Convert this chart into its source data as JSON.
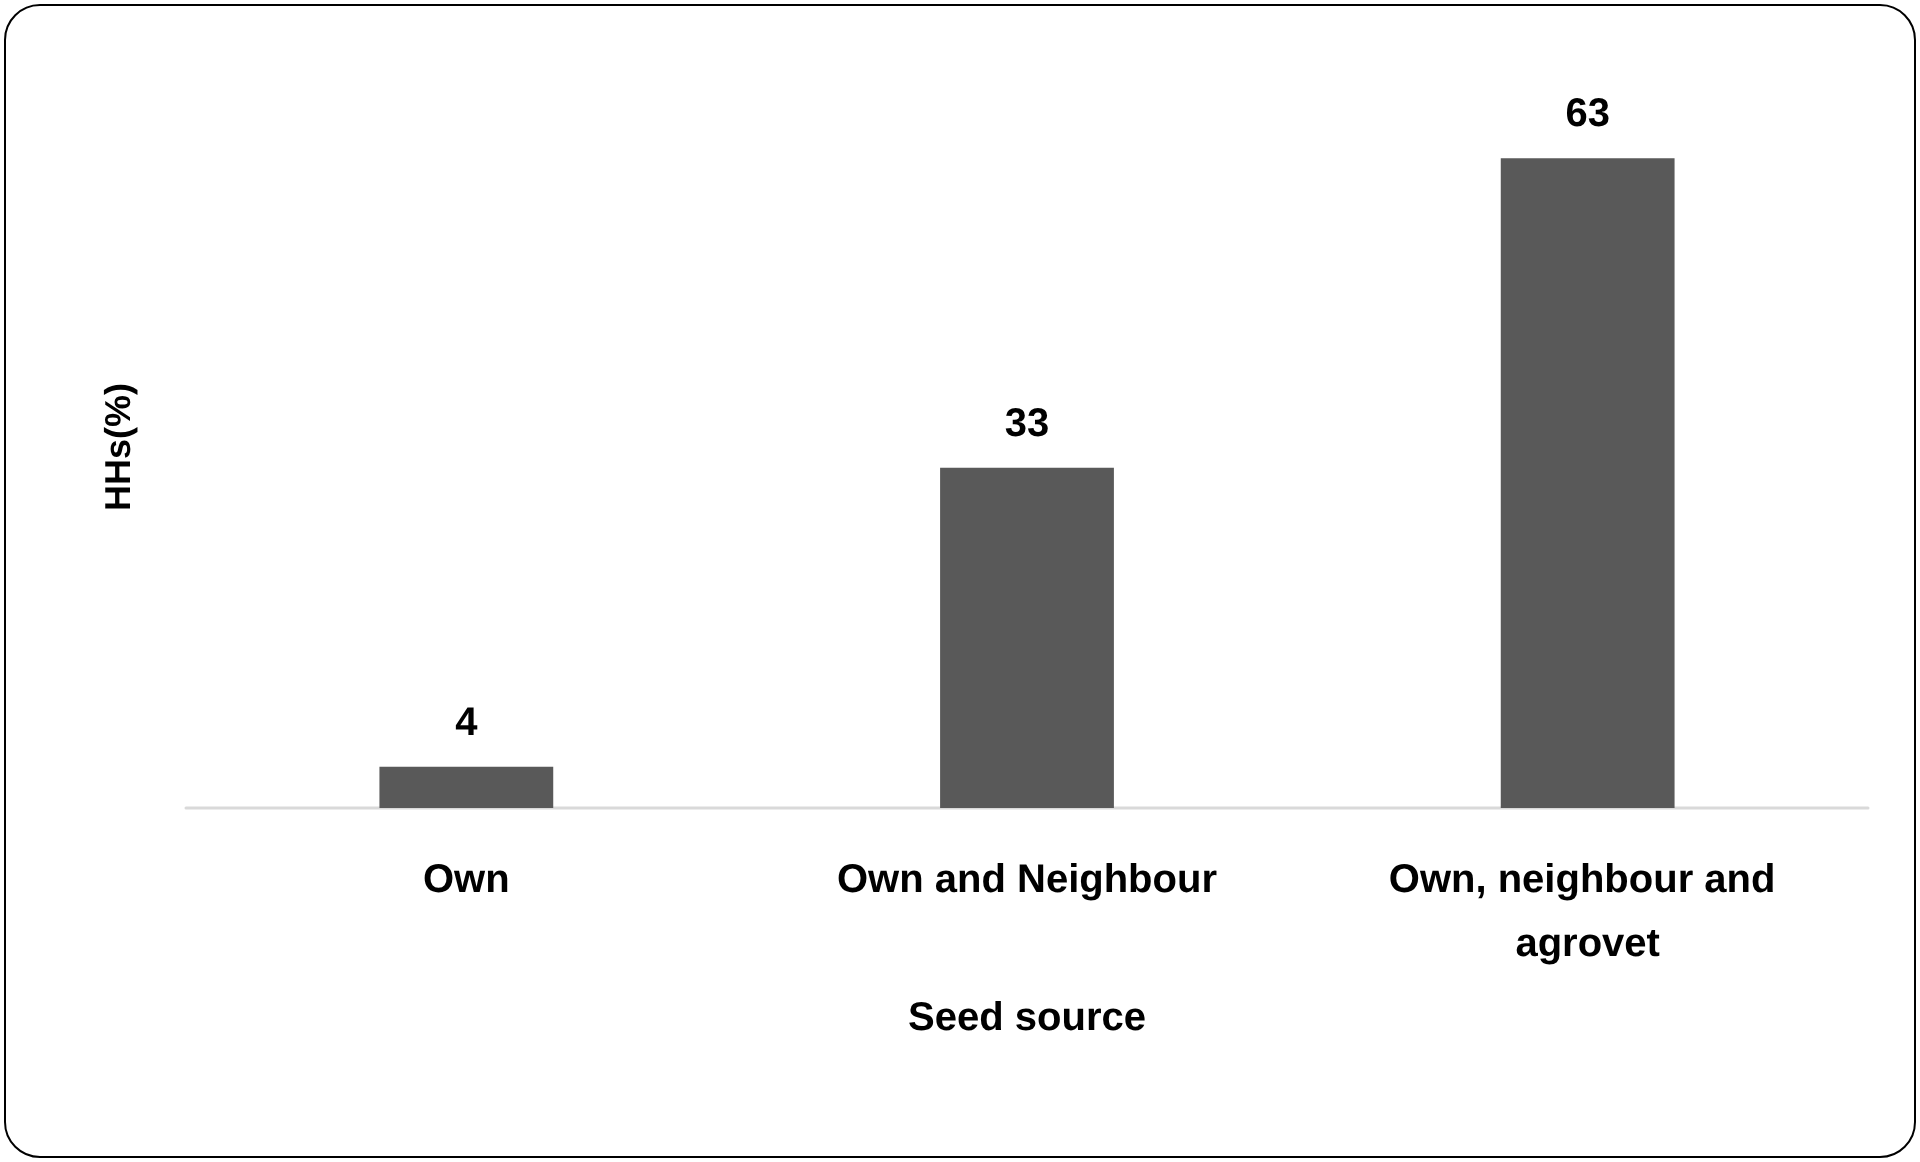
{
  "chart_data": {
    "type": "bar",
    "xlabel": "Seed source",
    "ylabel": "HHs(%)",
    "categories": [
      "Own",
      "Own and Neighbour",
      "Own, neighbour and agrovet"
    ],
    "values": [
      4,
      33,
      63
    ],
    "color": "#595959",
    "data_labels": true,
    "grid": false
  }
}
